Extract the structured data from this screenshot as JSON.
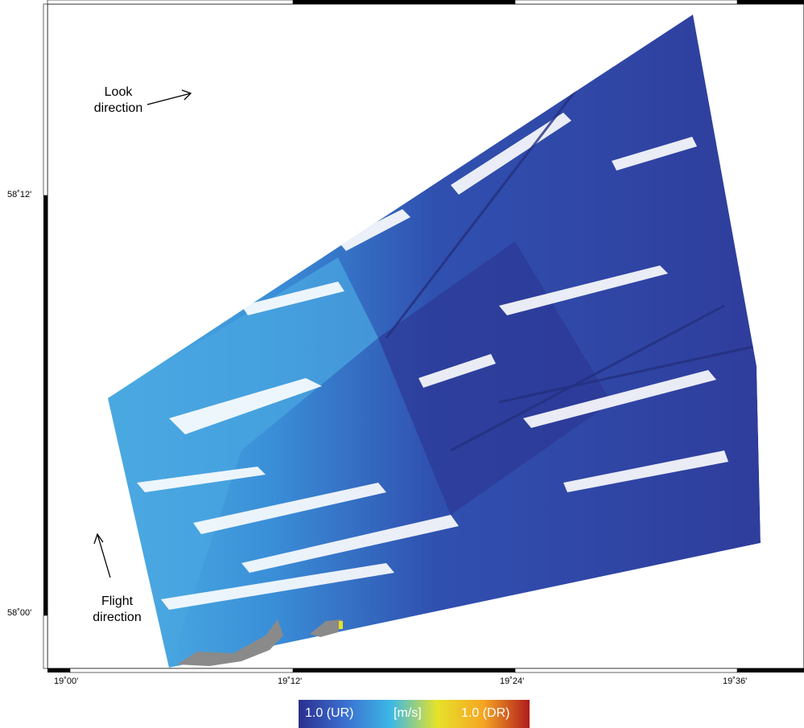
{
  "map": {
    "latitude_ticks": [
      "58˚12'",
      "58˚00'"
    ],
    "longitude_ticks": [
      "19˚00'",
      "19˚12'",
      "19˚24'",
      "19˚36'"
    ],
    "annotations": {
      "look_direction": [
        "Look",
        "direction"
      ],
      "flight_direction": [
        "Flight",
        "direction"
      ]
    }
  },
  "colorbar": {
    "left_label": "1.0 (UR)",
    "center_label": "[m/s]",
    "right_label": "1.0 (DR)",
    "colors": [
      "#2b2f8f",
      "#3b6fd0",
      "#3cb8e6",
      "#e6e22a",
      "#f5a623",
      "#b01c1c"
    ]
  },
  "palette": {
    "deep_blue": "#2f3d9c",
    "mid_blue": "#3a6fcf",
    "light_blue": "#4fb2e3",
    "land_gray": "#8a8a8a"
  }
}
